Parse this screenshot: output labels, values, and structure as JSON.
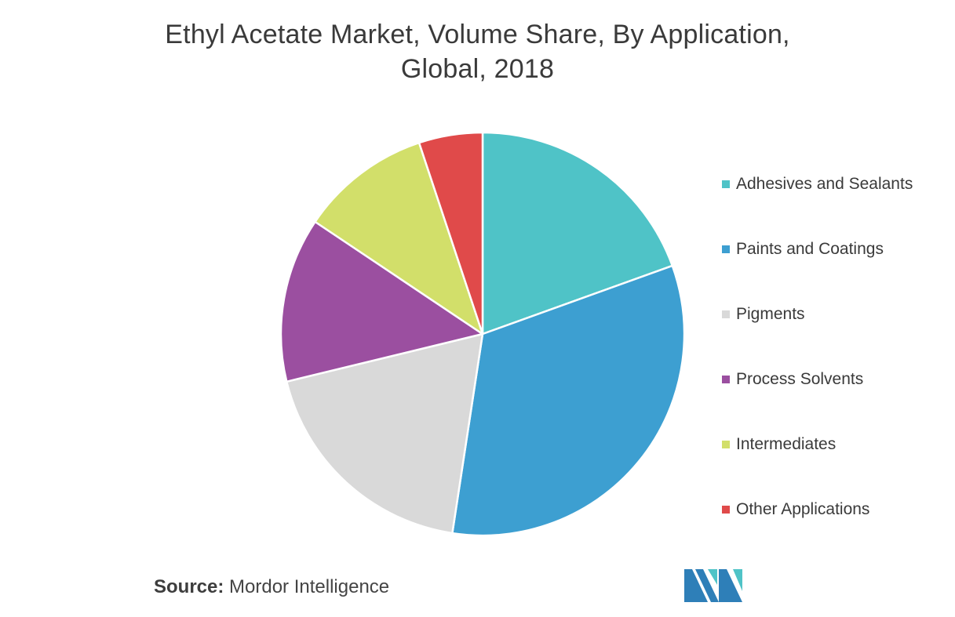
{
  "title_line1": "Ethyl Acetate Market, Volume Share, By Application,",
  "title_line2": "Global, 2018",
  "source_label": "Source:",
  "source_value": "Mordor Intelligence",
  "chart_data": {
    "type": "pie",
    "title": "Ethyl Acetate Market, Volume Share, By Application, Global, 2018",
    "legend_position": "right",
    "start_angle_deg": 0,
    "direction": "clockwise",
    "categories": [
      "Adhesives and Sealants",
      "Paints and Coatings",
      "Pigments",
      "Process Solvents",
      "Intermediates",
      "Other Applications"
    ],
    "values": [
      19.5,
      32.9,
      18.8,
      13.2,
      10.5,
      5.1
    ],
    "colors": [
      "#4fc3c7",
      "#3d9fd1",
      "#d9d9d9",
      "#9b4fa0",
      "#d2df6a",
      "#e04a4a"
    ]
  },
  "logo": {
    "colors": [
      "#2e7fb8",
      "#4fc3c7"
    ]
  }
}
